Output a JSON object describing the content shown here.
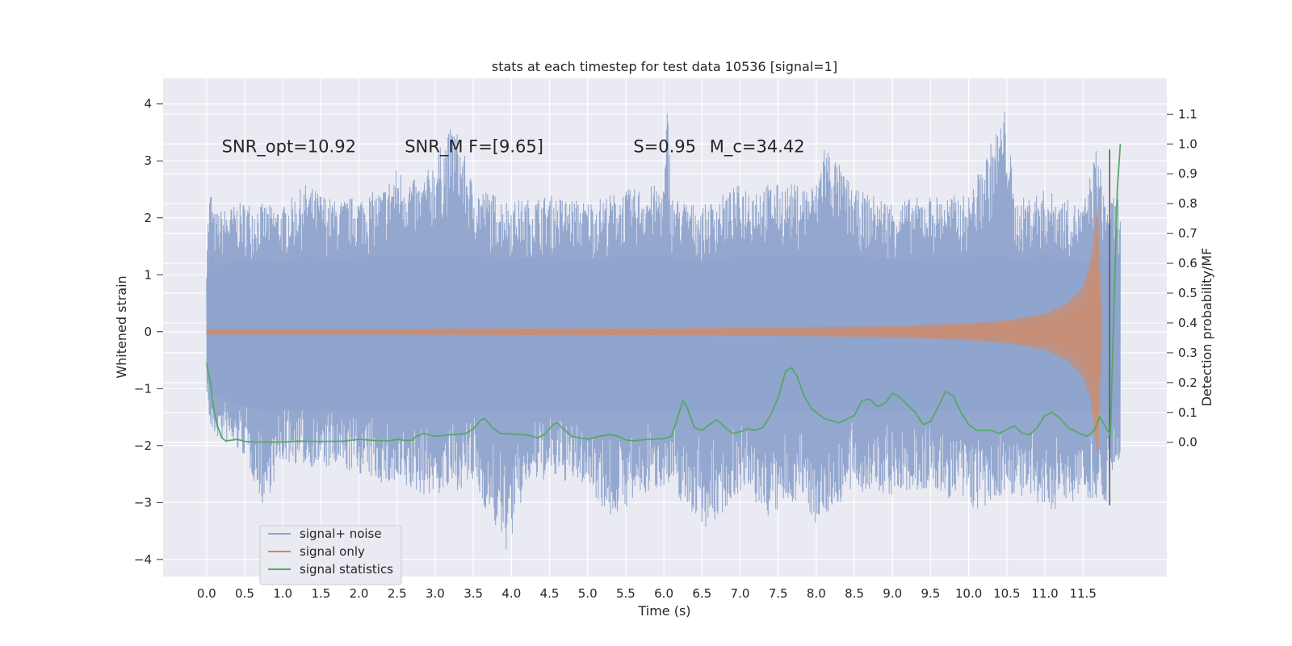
{
  "chart_data": {
    "type": "line",
    "title": "stats at each timestep for test data 10536 [signal=1]",
    "xlabel": "Time (s)",
    "ylabel": "Whitened strain",
    "ylabel_right": "Detection probability/MF",
    "xlim": [
      -0.57,
      12.6
    ],
    "ylim": [
      -4.3,
      4.45
    ],
    "ylim_right": [
      -0.45,
      1.22
    ],
    "x_ticks": [
      0.0,
      0.5,
      1.0,
      1.5,
      2.0,
      2.5,
      3.0,
      3.5,
      4.0,
      4.5,
      5.0,
      5.5,
      6.0,
      6.5,
      7.0,
      7.5,
      8.0,
      8.5,
      9.0,
      9.5,
      10.0,
      10.5,
      11.0,
      11.5
    ],
    "x_tick_labels": [
      "0.0",
      "0.5",
      "1.0",
      "1.5",
      "2.0",
      "2.5",
      "3.0",
      "3.5",
      "4.0",
      "4.5",
      "5.0",
      "5.5",
      "6.0",
      "6.5",
      "7.0",
      "7.5",
      "8.0",
      "8.5",
      "9.0",
      "9.5",
      "10.0",
      "10.5",
      "11.0",
      "11.5"
    ],
    "y_ticks": [
      -4,
      -3,
      -2,
      -1,
      0,
      1,
      2,
      3,
      4
    ],
    "y_tick_labels": [
      "−4",
      "−3",
      "−2",
      "−1",
      "0",
      "1",
      "2",
      "3",
      "4"
    ],
    "y_ticks_right": [
      0.0,
      0.1,
      0.2,
      0.3,
      0.4,
      0.5,
      0.6,
      0.7,
      0.8,
      0.9,
      1.0,
      1.1
    ],
    "y_tick_labels_right": [
      "0.0",
      "0.1",
      "0.2",
      "0.3",
      "0.4",
      "0.5",
      "0.6",
      "0.7",
      "0.8",
      "0.9",
      "1.0",
      "1.1"
    ],
    "grid": true,
    "legend_position": "lower-left",
    "annotations": [
      {
        "text": "SNR_opt=10.92",
        "x": 0.2,
        "y": 3.15
      },
      {
        "text": "SNR_M F=[9.65]",
        "x": 2.6,
        "y": 3.15
      },
      {
        "text": "S=0.95",
        "x": 5.6,
        "y": 3.15
      },
      {
        "text": "M_c=34.42",
        "x": 6.6,
        "y": 3.15
      }
    ],
    "vertical_line": {
      "x": 11.85,
      "y_range": [
        -3.05,
        3.2
      ]
    },
    "series": [
      {
        "name": "signal+ noise",
        "color": "#8fa4cc",
        "axis": "left",
        "envelope_upper": [
          [
            0.0,
            1.7
          ],
          [
            0.05,
            2.6
          ],
          [
            0.1,
            2.1
          ],
          [
            0.5,
            2.3
          ],
          [
            1.0,
            2.2
          ],
          [
            1.3,
            2.6
          ],
          [
            1.7,
            2.3
          ],
          [
            2.0,
            2.4
          ],
          [
            2.3,
            2.5
          ],
          [
            2.5,
            2.9
          ],
          [
            2.8,
            2.6
          ],
          [
            3.25,
            3.7
          ],
          [
            3.5,
            2.6
          ],
          [
            4.0,
            2.3
          ],
          [
            4.5,
            2.4
          ],
          [
            5.0,
            2.3
          ],
          [
            5.5,
            2.5
          ],
          [
            6.0,
            2.6
          ],
          [
            6.05,
            4.1
          ],
          [
            6.1,
            2.4
          ],
          [
            6.5,
            2.2
          ],
          [
            7.0,
            2.6
          ],
          [
            7.5,
            2.6
          ],
          [
            8.0,
            2.6
          ],
          [
            8.1,
            3.4
          ],
          [
            8.5,
            2.5
          ],
          [
            9.0,
            2.3
          ],
          [
            9.5,
            2.4
          ],
          [
            10.0,
            2.4
          ],
          [
            10.5,
            4.0
          ],
          [
            10.6,
            2.3
          ],
          [
            11.0,
            2.5
          ],
          [
            11.5,
            2.2
          ],
          [
            11.68,
            3.3
          ],
          [
            11.8,
            2.3
          ],
          [
            11.99,
            2.4
          ]
        ],
        "envelope_lower": [
          [
            0.0,
            -1.0
          ],
          [
            0.05,
            -1.8
          ],
          [
            0.5,
            -2.2
          ],
          [
            0.75,
            -3.1
          ],
          [
            1.0,
            -2.3
          ],
          [
            1.5,
            -2.4
          ],
          [
            2.0,
            -2.5
          ],
          [
            2.5,
            -2.8
          ],
          [
            3.0,
            -2.9
          ],
          [
            3.5,
            -2.7
          ],
          [
            3.95,
            -3.9
          ],
          [
            4.2,
            -2.7
          ],
          [
            4.5,
            -2.6
          ],
          [
            5.0,
            -2.7
          ],
          [
            5.3,
            -3.3
          ],
          [
            5.5,
            -3.1
          ],
          [
            6.0,
            -2.7
          ],
          [
            6.6,
            -3.5
          ],
          [
            7.0,
            -2.8
          ],
          [
            7.4,
            -3.3
          ],
          [
            7.8,
            -2.9
          ],
          [
            8.0,
            -3.4
          ],
          [
            8.5,
            -2.8
          ],
          [
            9.0,
            -2.9
          ],
          [
            9.5,
            -2.8
          ],
          [
            10.2,
            -3.2
          ],
          [
            10.5,
            -2.8
          ],
          [
            11.0,
            -3.2
          ],
          [
            11.5,
            -2.9
          ],
          [
            11.8,
            -3.0
          ],
          [
            11.99,
            -2.2
          ]
        ]
      },
      {
        "name": "signal only",
        "color": "#dd8452",
        "axis": "left",
        "envelope": [
          [
            0.0,
            0.05
          ],
          [
            2.0,
            0.05
          ],
          [
            4.0,
            0.06
          ],
          [
            6.0,
            0.06
          ],
          [
            7.0,
            0.07
          ],
          [
            8.0,
            0.08
          ],
          [
            9.0,
            0.1
          ],
          [
            10.0,
            0.15
          ],
          [
            10.5,
            0.2
          ],
          [
            11.0,
            0.32
          ],
          [
            11.3,
            0.5
          ],
          [
            11.5,
            0.8
          ],
          [
            11.6,
            1.2
          ],
          [
            11.65,
            1.8
          ],
          [
            11.7,
            2.3
          ],
          [
            11.72,
            1.2
          ],
          [
            11.75,
            0.0
          ]
        ]
      },
      {
        "name": "signal statistics",
        "color": "#55a868",
        "axis": "right",
        "points": [
          [
            0.0,
            0.265
          ],
          [
            0.05,
            0.2
          ],
          [
            0.1,
            0.1
          ],
          [
            0.15,
            0.05
          ],
          [
            0.2,
            0.015
          ],
          [
            0.25,
            0.005
          ],
          [
            0.3,
            0.006
          ],
          [
            0.35,
            0.008
          ],
          [
            0.4,
            0.01
          ],
          [
            0.5,
            0.003
          ],
          [
            0.6,
            0.001
          ],
          [
            0.8,
            0.001
          ],
          [
            1.0,
            0.001
          ],
          [
            1.2,
            0.004
          ],
          [
            1.4,
            0.003
          ],
          [
            1.6,
            0.003
          ],
          [
            1.8,
            0.004
          ],
          [
            2.0,
            0.01
          ],
          [
            2.2,
            0.006
          ],
          [
            2.4,
            0.005
          ],
          [
            2.5,
            0.01
          ],
          [
            2.6,
            0.006
          ],
          [
            2.7,
            0.007
          ],
          [
            2.75,
            0.02
          ],
          [
            2.85,
            0.03
          ],
          [
            3.0,
            0.02
          ],
          [
            3.2,
            0.025
          ],
          [
            3.4,
            0.03
          ],
          [
            3.5,
            0.045
          ],
          [
            3.6,
            0.075
          ],
          [
            3.65,
            0.08
          ],
          [
            3.75,
            0.05
          ],
          [
            3.85,
            0.03
          ],
          [
            4.0,
            0.028
          ],
          [
            4.2,
            0.025
          ],
          [
            4.35,
            0.015
          ],
          [
            4.45,
            0.03
          ],
          [
            4.55,
            0.06
          ],
          [
            4.6,
            0.065
          ],
          [
            4.7,
            0.04
          ],
          [
            4.8,
            0.02
          ],
          [
            5.0,
            0.01
          ],
          [
            5.15,
            0.02
          ],
          [
            5.3,
            0.026
          ],
          [
            5.4,
            0.02
          ],
          [
            5.5,
            0.008
          ],
          [
            5.6,
            0.005
          ],
          [
            5.8,
            0.01
          ],
          [
            6.0,
            0.012
          ],
          [
            6.1,
            0.02
          ],
          [
            6.2,
            0.1
          ],
          [
            6.25,
            0.14
          ],
          [
            6.3,
            0.12
          ],
          [
            6.4,
            0.05
          ],
          [
            6.5,
            0.04
          ],
          [
            6.6,
            0.06
          ],
          [
            6.7,
            0.075
          ],
          [
            6.8,
            0.05
          ],
          [
            6.9,
            0.03
          ],
          [
            7.0,
            0.035
          ],
          [
            7.1,
            0.045
          ],
          [
            7.2,
            0.04
          ],
          [
            7.3,
            0.05
          ],
          [
            7.4,
            0.09
          ],
          [
            7.5,
            0.15
          ],
          [
            7.6,
            0.24
          ],
          [
            7.68,
            0.25
          ],
          [
            7.75,
            0.22
          ],
          [
            7.85,
            0.15
          ],
          [
            7.95,
            0.11
          ],
          [
            8.1,
            0.08
          ],
          [
            8.3,
            0.065
          ],
          [
            8.5,
            0.09
          ],
          [
            8.6,
            0.14
          ],
          [
            8.7,
            0.145
          ],
          [
            8.8,
            0.12
          ],
          [
            8.9,
            0.13
          ],
          [
            9.0,
            0.165
          ],
          [
            9.1,
            0.15
          ],
          [
            9.3,
            0.1
          ],
          [
            9.4,
            0.06
          ],
          [
            9.5,
            0.07
          ],
          [
            9.6,
            0.12
          ],
          [
            9.7,
            0.17
          ],
          [
            9.8,
            0.155
          ],
          [
            9.9,
            0.1
          ],
          [
            10.0,
            0.06
          ],
          [
            10.1,
            0.04
          ],
          [
            10.3,
            0.04
          ],
          [
            10.4,
            0.03
          ],
          [
            10.55,
            0.05
          ],
          [
            10.6,
            0.055
          ],
          [
            10.7,
            0.03
          ],
          [
            10.8,
            0.025
          ],
          [
            10.9,
            0.05
          ],
          [
            11.0,
            0.09
          ],
          [
            11.1,
            0.1
          ],
          [
            11.2,
            0.08
          ],
          [
            11.3,
            0.05
          ],
          [
            11.45,
            0.03
          ],
          [
            11.55,
            0.02
          ],
          [
            11.65,
            0.04
          ],
          [
            11.72,
            0.085
          ],
          [
            11.8,
            0.05
          ],
          [
            11.86,
            0.025
          ],
          [
            11.9,
            0.4
          ],
          [
            11.95,
            0.85
          ],
          [
            11.99,
            1.0
          ]
        ]
      }
    ]
  },
  "legend": {
    "items": [
      {
        "label": "signal+ noise",
        "color": "#8fa4cc"
      },
      {
        "label": "signal only",
        "color": "#dd8452"
      },
      {
        "label": "signal statistics",
        "color": "#55a868"
      }
    ]
  }
}
